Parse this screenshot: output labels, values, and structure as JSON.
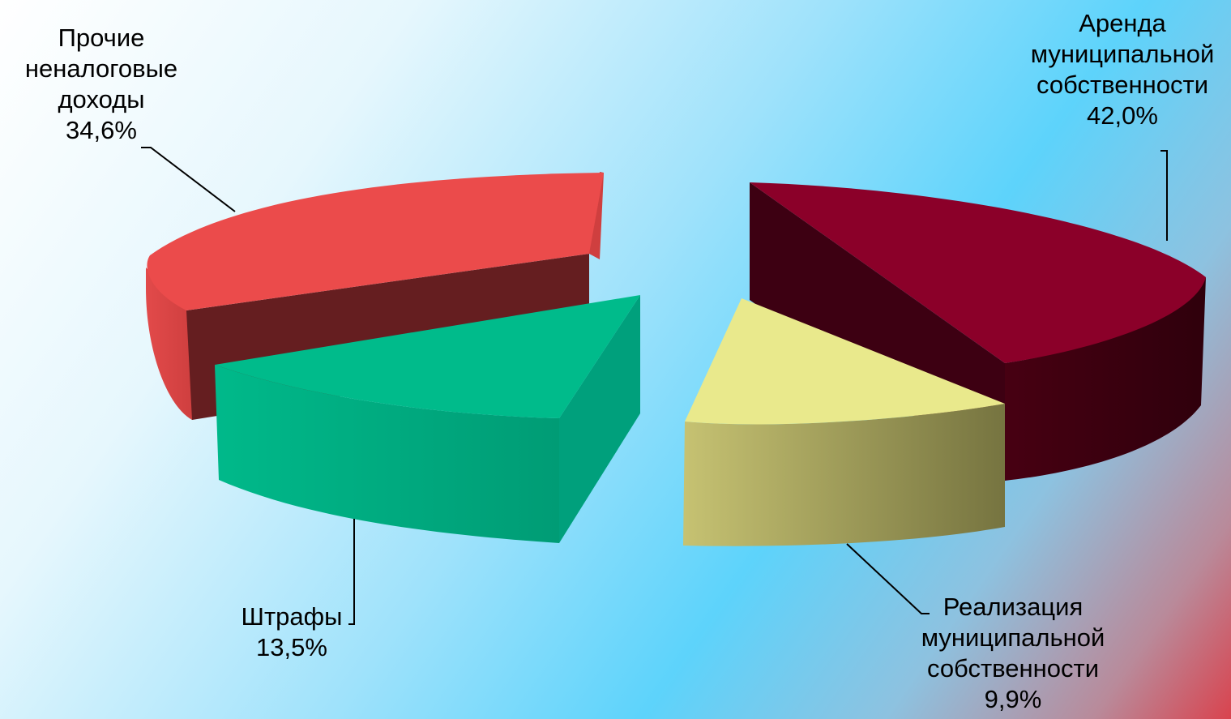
{
  "chart_data": {
    "type": "pie",
    "title": "",
    "slices": [
      {
        "label": [
          "Аренда",
          "муниципальной",
          "собственности"
        ],
        "value_label": "42,0%",
        "value": 42.0,
        "color": "#8b0029"
      },
      {
        "label": [
          "Реализация",
          "муниципальной",
          "собственности"
        ],
        "value_label": "9,9%",
        "value": 9.9,
        "color": "#e9e98c"
      },
      {
        "label": [
          "Штрафы"
        ],
        "value_label": "13,5%",
        "value": 13.5,
        "color": "#00bb8b"
      },
      {
        "label": [
          "Прочие",
          "неналоговые",
          "доходы"
        ],
        "value_label": "34,6%",
        "value": 34.6,
        "color": "#eb4b4b"
      }
    ],
    "exploded": true,
    "three_d": true,
    "legend": "none"
  }
}
